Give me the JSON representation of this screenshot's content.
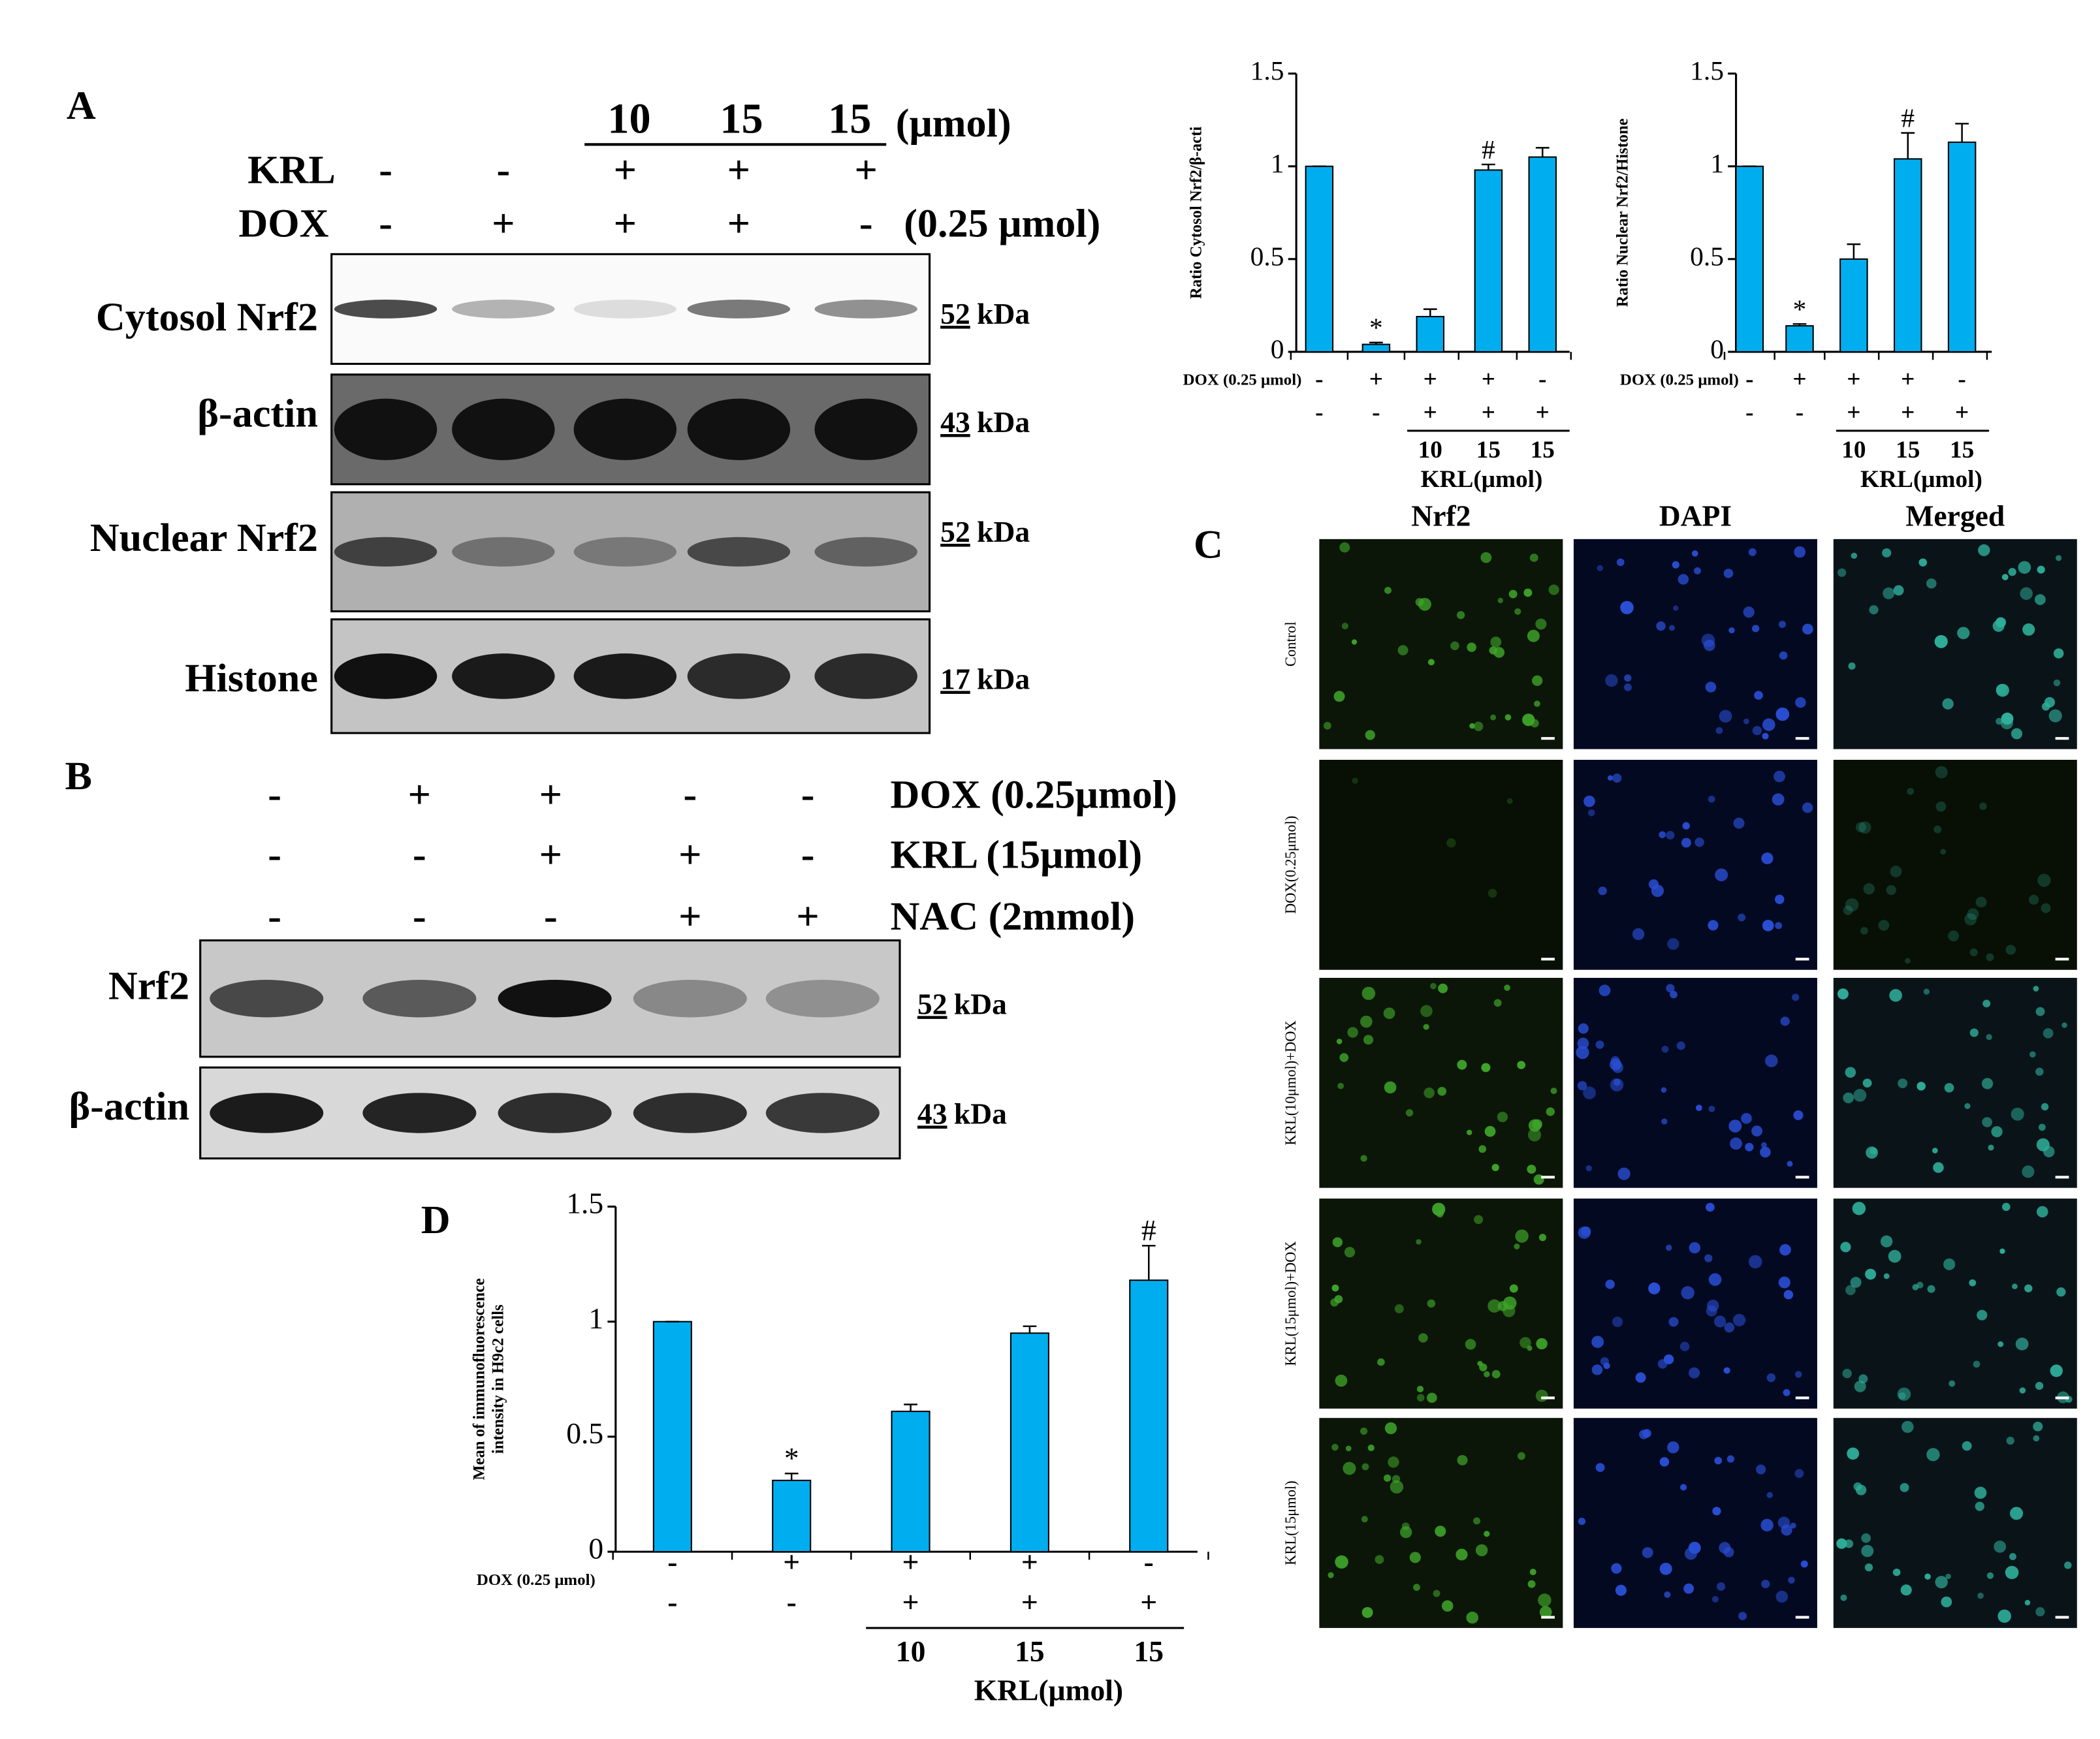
{
  "panel_labels": [
    "A",
    "B",
    "C",
    "D"
  ],
  "panel_a": {
    "dose_header": [
      "10",
      "15",
      "15"
    ],
    "dose_unit": "(μmol)",
    "rows": [
      {
        "label": "KRL",
        "signs": [
          "-",
          "-",
          "+",
          "+",
          "+"
        ]
      },
      {
        "label": "DOX",
        "signs": [
          "-",
          "+",
          "+",
          "+",
          "-"
        ],
        "note": "(0.25 μmol)"
      }
    ],
    "blots": [
      {
        "label": "Cytosol Nrf2",
        "marker": "52",
        "unit": "kDa"
      },
      {
        "label": "β-actin",
        "marker": "43",
        "unit": "kDa"
      },
      {
        "label": "Nuclear Nrf2",
        "marker": "52",
        "unit": "kDa"
      },
      {
        "label": "Histone",
        "marker": "17",
        "unit": "kDa"
      }
    ]
  },
  "panel_b": {
    "rows": [
      {
        "label": "DOX (0.25μmol)",
        "signs": [
          "-",
          "+",
          "+",
          "-",
          "-"
        ]
      },
      {
        "label": "KRL (15μmol)",
        "signs": [
          "-",
          "-",
          "+",
          "+",
          "-"
        ]
      },
      {
        "label": "NAC (2mmol)",
        "signs": [
          "-",
          "-",
          "-",
          "+",
          "+"
        ]
      }
    ],
    "blots": [
      {
        "label": "Nrf2",
        "marker": "52",
        "unit": "kDa"
      },
      {
        "label": "β-actin",
        "marker": "43",
        "unit": "kDa"
      }
    ]
  },
  "panel_c": {
    "columns": [
      "Nrf2",
      "DAPI",
      "Merged"
    ],
    "rows": [
      "Control",
      "DOX(0.25μmol)",
      "KRL(10μmol)+DOX",
      "KRL(15μmol)+DOX",
      "KRL(15μmol)"
    ]
  },
  "chart_data": [
    {
      "type": "bar",
      "y_label": [
        "Ratio Cytosol Nrf2/β-acti"
      ],
      "color": "#00aeef",
      "categories": [
        null,
        null,
        null,
        null,
        null
      ],
      "values": [
        1,
        0.04,
        0.19,
        0.98,
        1.05
      ],
      "errors": [
        0,
        0.01,
        0.04,
        0.03,
        0.05
      ],
      "annotations": [
        "",
        "*",
        "",
        "#",
        ""
      ],
      "ylim": [
        0,
        1.5
      ],
      "yticks": [
        0,
        0.5,
        1,
        1.5
      ],
      "x_rows": [
        {
          "label": "DOX (0.25 μmol)",
          "signs": [
            "-",
            "+",
            "+",
            "+",
            "-"
          ]
        },
        {
          "signs": [
            "-",
            "-",
            "+",
            "+",
            "+"
          ]
        }
      ],
      "doses": [
        "10",
        "15",
        "15"
      ],
      "dose_label": "KRL(μmol)"
    },
    {
      "type": "bar",
      "y_label": [
        "Ratio Nuclear Nrf2/Histone"
      ],
      "color": "#00aeef",
      "categories": [
        null,
        null,
        null,
        null,
        null
      ],
      "values": [
        1,
        0.14,
        0.5,
        1.04,
        1.13
      ],
      "errors": [
        0,
        0.01,
        0.08,
        0.14,
        0.1
      ],
      "annotations": [
        "",
        "*",
        "",
        "#",
        ""
      ],
      "ylim": [
        0,
        1.5
      ],
      "yticks": [
        0,
        0.5,
        1,
        1.5
      ],
      "x_rows": [
        {
          "label": "DOX (0.25 μmol)",
          "signs": [
            "-",
            "+",
            "+",
            "+",
            "-"
          ]
        },
        {
          "signs": [
            "-",
            "-",
            "+",
            "+",
            "+"
          ]
        }
      ],
      "doses": [
        "10",
        "15",
        "15"
      ],
      "dose_label": "KRL(μmol)"
    },
    {
      "type": "bar",
      "y_label": [
        "Mean of immunofluorescence",
        "intensity in H9c2 cells"
      ],
      "color": "#00aeef",
      "categories": [
        null,
        null,
        null,
        null,
        null
      ],
      "values": [
        1,
        0.31,
        0.61,
        0.95,
        1.18
      ],
      "errors": [
        0,
        0.03,
        0.03,
        0.03,
        0.15
      ],
      "annotations": [
        "",
        "*",
        "",
        "",
        "#"
      ],
      "ylim": [
        0,
        1.5
      ],
      "yticks": [
        0,
        0.5,
        1,
        1.5
      ],
      "x_rows": [
        {
          "label": "DOX (0.25 μmol)",
          "signs": [
            "-",
            "+",
            "+",
            "+",
            "-"
          ]
        },
        {
          "signs": [
            "-",
            "-",
            "+",
            "+",
            "+"
          ]
        }
      ],
      "doses": [
        "10",
        "15",
        "15"
      ],
      "dose_label": "KRL(μmol)"
    }
  ]
}
